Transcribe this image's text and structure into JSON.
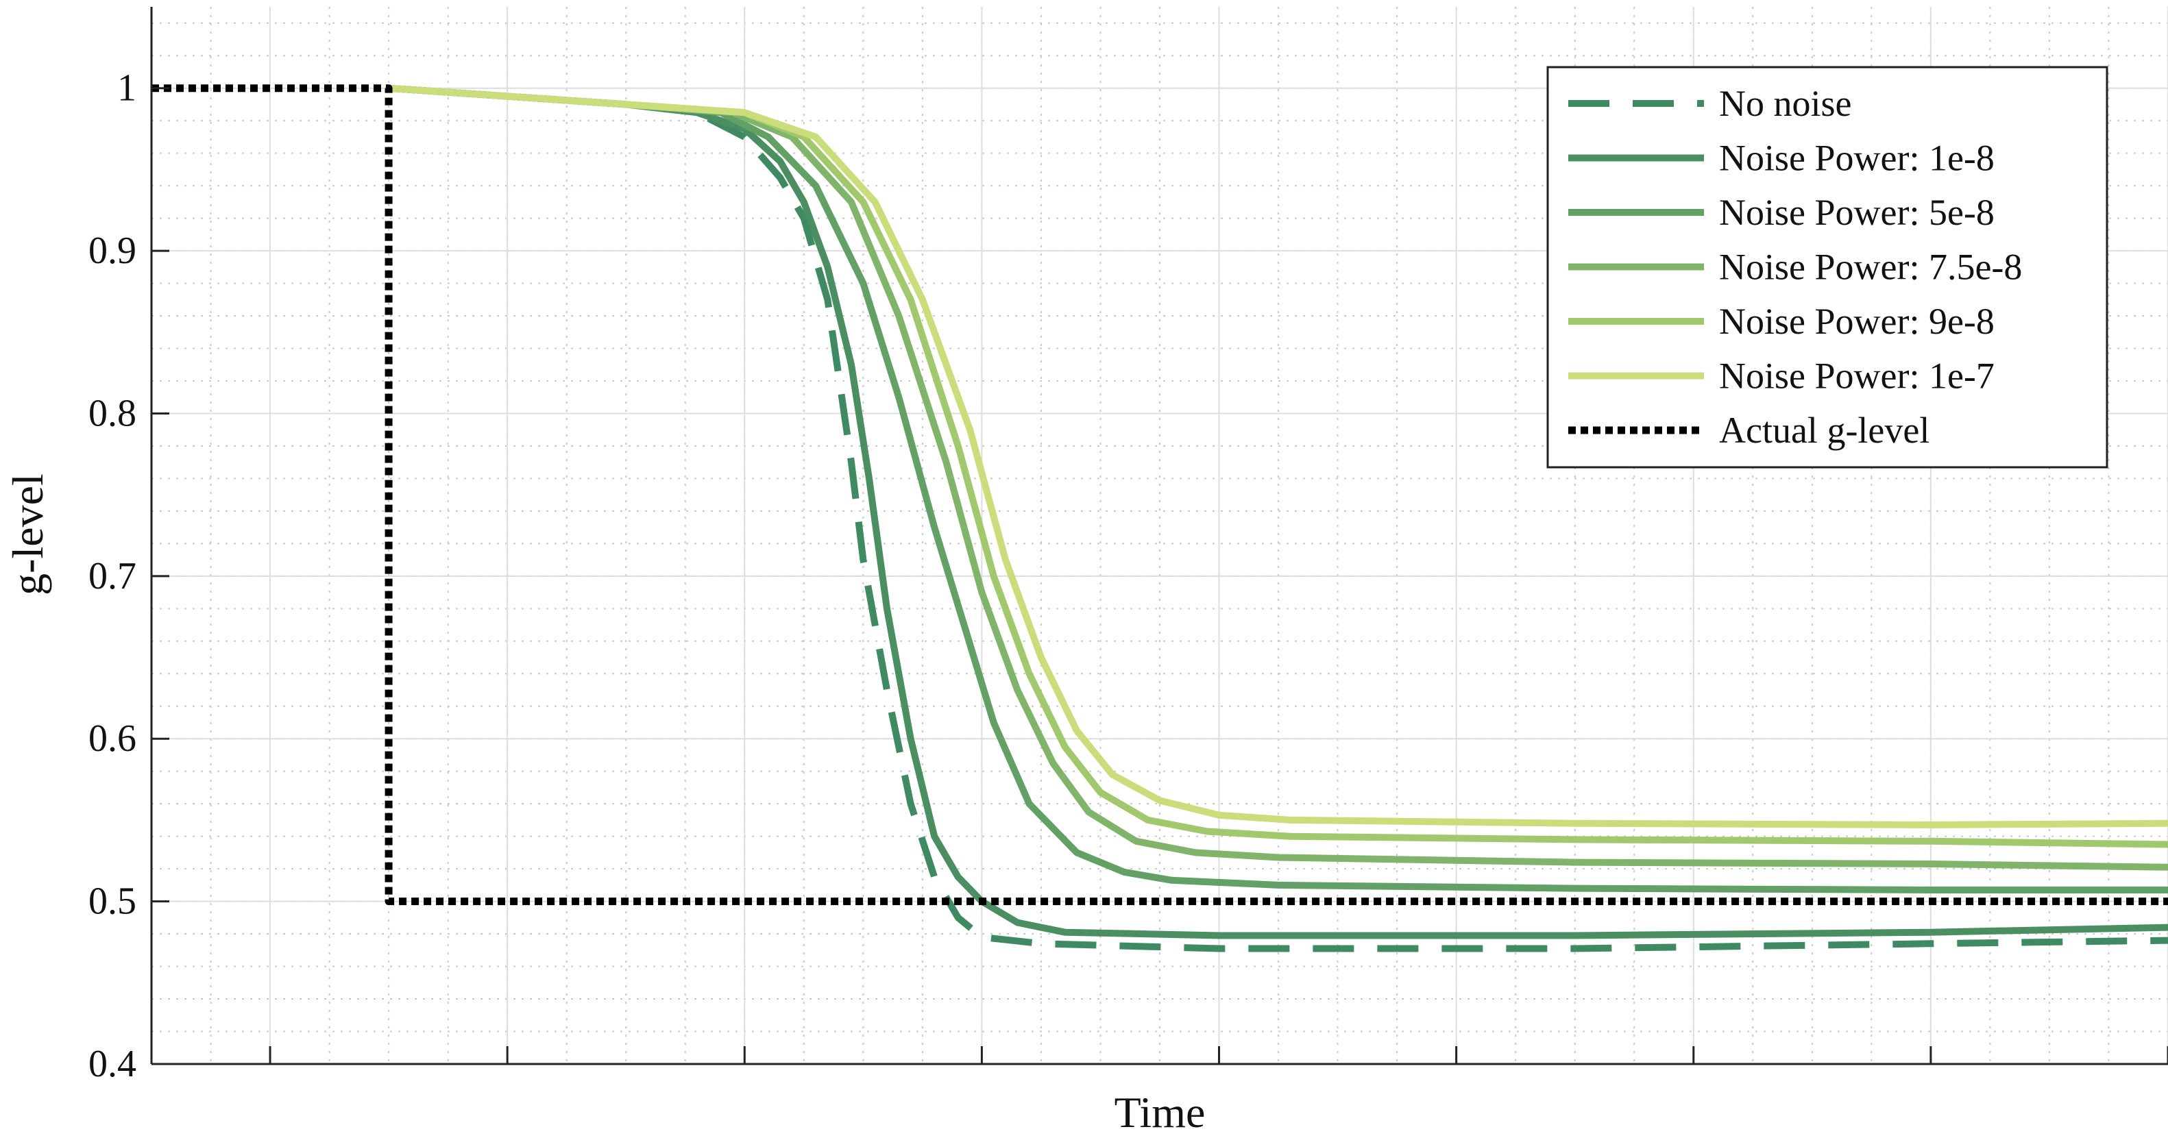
{
  "chart_data": {
    "type": "line",
    "title": "",
    "xlabel": "Time",
    "ylabel": "g-level",
    "xlim": [
      0,
      17
    ],
    "ylim": [
      0.4,
      1.05
    ],
    "yticks": [
      0.4,
      0.5,
      0.6,
      0.7,
      0.8,
      0.9,
      1
    ],
    "ytick_labels": [
      "0.4",
      "0.5",
      "0.6",
      "0.7",
      "0.8",
      "0.9",
      "1"
    ],
    "xticks": [
      0,
      1,
      3,
      5,
      7,
      9,
      11,
      13,
      15,
      17
    ],
    "grid": true,
    "minor_grid": true,
    "legend_position": "top-right",
    "series": [
      {
        "name": "No noise",
        "style": "dashed",
        "color": "#3f8a63",
        "x": [
          2,
          4,
          4.6,
          5,
          5.3,
          5.5,
          5.7,
          5.8,
          5.9,
          6.0,
          6.2,
          6.4,
          6.6,
          6.8,
          7.0,
          7.5,
          9,
          12,
          15,
          17
        ],
        "y": [
          1.0,
          0.99,
          0.985,
          0.97,
          0.945,
          0.92,
          0.87,
          0.82,
          0.77,
          0.71,
          0.63,
          0.56,
          0.515,
          0.49,
          0.478,
          0.474,
          0.471,
          0.471,
          0.474,
          0.476
        ]
      },
      {
        "name": "Noise Power: 1e-8",
        "style": "solid",
        "color": "#4b8e62",
        "x": [
          2,
          4,
          4.6,
          5,
          5.3,
          5.5,
          5.7,
          5.9,
          6.05,
          6.2,
          6.4,
          6.6,
          6.8,
          7.0,
          7.3,
          7.7,
          9,
          12,
          15,
          17
        ],
        "y": [
          1.0,
          0.99,
          0.985,
          0.975,
          0.955,
          0.93,
          0.89,
          0.83,
          0.76,
          0.68,
          0.6,
          0.54,
          0.515,
          0.5,
          0.487,
          0.481,
          0.479,
          0.479,
          0.481,
          0.484
        ]
      },
      {
        "name": "Noise Power: 5e-8",
        "style": "solid",
        "color": "#62a066",
        "x": [
          2,
          4,
          4.8,
          5.2,
          5.6,
          6.0,
          6.3,
          6.6,
          6.85,
          7.1,
          7.4,
          7.8,
          8.2,
          8.6,
          9.5,
          12,
          15,
          17
        ],
        "y": [
          1.0,
          0.99,
          0.985,
          0.97,
          0.94,
          0.88,
          0.81,
          0.73,
          0.67,
          0.61,
          0.56,
          0.53,
          0.518,
          0.513,
          0.51,
          0.508,
          0.507,
          0.507
        ]
      },
      {
        "name": "Noise Power: 7.5e-8",
        "style": "solid",
        "color": "#7fb46a",
        "x": [
          2,
          4,
          4.9,
          5.4,
          5.9,
          6.3,
          6.7,
          7.0,
          7.3,
          7.6,
          7.9,
          8.3,
          8.8,
          9.5,
          12,
          15,
          17
        ],
        "y": [
          1.0,
          0.99,
          0.985,
          0.97,
          0.93,
          0.86,
          0.77,
          0.69,
          0.63,
          0.585,
          0.555,
          0.537,
          0.53,
          0.527,
          0.524,
          0.523,
          0.521
        ]
      },
      {
        "name": "Noise Power: 9e-8",
        "style": "solid",
        "color": "#a2c86d",
        "x": [
          2,
          4,
          5.0,
          5.5,
          6.0,
          6.4,
          6.8,
          7.1,
          7.4,
          7.7,
          8.0,
          8.4,
          8.9,
          9.6,
          12,
          15,
          17
        ],
        "y": [
          1.0,
          0.99,
          0.985,
          0.97,
          0.93,
          0.87,
          0.78,
          0.7,
          0.64,
          0.595,
          0.567,
          0.55,
          0.543,
          0.54,
          0.538,
          0.537,
          0.535
        ]
      },
      {
        "name": "Noise Power: 1e-7",
        "style": "solid",
        "color": "#c9dd7a",
        "x": [
          2,
          4,
          5.0,
          5.6,
          6.1,
          6.5,
          6.9,
          7.2,
          7.5,
          7.8,
          8.1,
          8.5,
          9.0,
          9.6,
          12,
          15,
          17
        ],
        "y": [
          1.0,
          0.99,
          0.985,
          0.97,
          0.93,
          0.87,
          0.79,
          0.71,
          0.65,
          0.605,
          0.578,
          0.562,
          0.553,
          0.55,
          0.548,
          0.547,
          0.548
        ]
      },
      {
        "name": "Actual g-level",
        "style": "dotted",
        "color": "#000000",
        "x": [
          0,
          2,
          2,
          17
        ],
        "y": [
          1.0,
          1.0,
          0.5,
          0.5
        ]
      }
    ]
  }
}
